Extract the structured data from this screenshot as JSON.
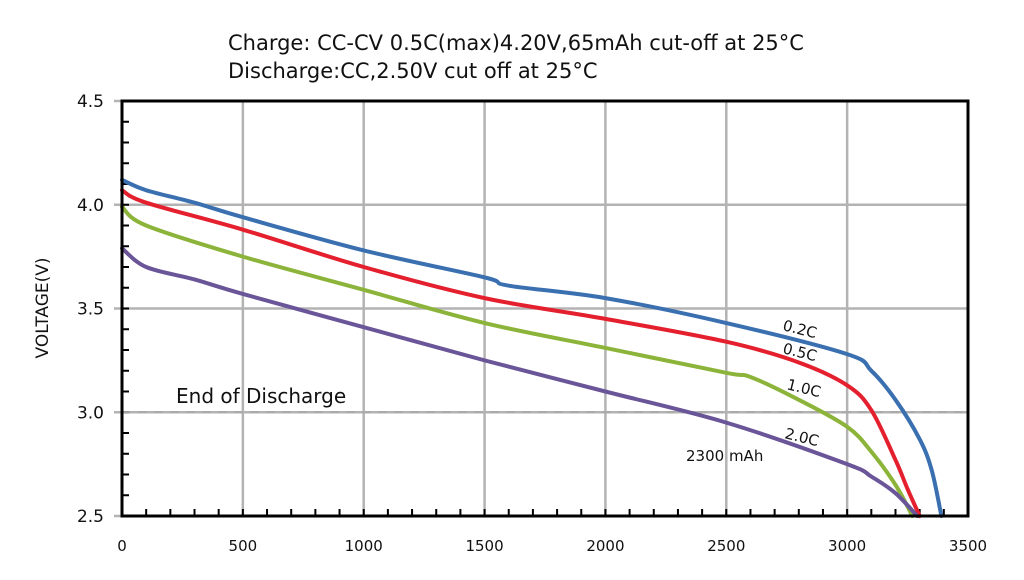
{
  "chart_data": {
    "type": "line",
    "title": [
      "Charge: CC-CV 0.5C(max)4.20V,65mAh cut-off at 25°C",
      "Discharge:CC,2.50V cut off at 25°C"
    ],
    "xlabel": "",
    "ylabel": "VOLTAGE(V)",
    "xlim": [
      0,
      3500
    ],
    "ylim": [
      2.5,
      4.5
    ],
    "xticks": [
      "0",
      "500",
      "1000",
      "1500",
      "2000",
      "2500",
      "3000",
      "3500"
    ],
    "yticks": [
      "2.5",
      "3.0",
      "3.5",
      "4.0",
      "4.5"
    ],
    "grid": true,
    "reference_line": {
      "y": 3.0,
      "label": "End of Discharge",
      "style": "dashed",
      "color": "#aaaaaa"
    },
    "annotation": "2300 mAh",
    "series": [
      {
        "name": "0.2C",
        "color": "#3a6fb0",
        "x": [
          0,
          100,
          300,
          500,
          1000,
          1500,
          1600,
          2000,
          2500,
          3000,
          3100,
          3200,
          3300,
          3350,
          3390
        ],
        "y": [
          4.12,
          4.07,
          4.01,
          3.94,
          3.78,
          3.65,
          3.61,
          3.55,
          3.43,
          3.28,
          3.2,
          3.06,
          2.87,
          2.72,
          2.5
        ]
      },
      {
        "name": "0.5C",
        "color": "#e5202e",
        "x": [
          0,
          100,
          500,
          1000,
          1500,
          2000,
          2500,
          2800,
          3000,
          3100,
          3200,
          3250,
          3300
        ],
        "y": [
          4.07,
          4.01,
          3.88,
          3.7,
          3.55,
          3.45,
          3.34,
          3.24,
          3.13,
          3.01,
          2.77,
          2.63,
          2.5
        ]
      },
      {
        "name": "1.0C",
        "color": "#8db43a",
        "x": [
          0,
          100,
          500,
          1000,
          1500,
          2000,
          2500,
          2600,
          2800,
          3000,
          3100,
          3200,
          3270
        ],
        "y": [
          3.99,
          3.9,
          3.75,
          3.59,
          3.43,
          3.31,
          3.19,
          3.17,
          3.06,
          2.93,
          2.81,
          2.65,
          2.5
        ]
      },
      {
        "name": "2.0C",
        "color": "#6a5598",
        "x": [
          0,
          100,
          300,
          500,
          1000,
          1500,
          2000,
          2500,
          3000,
          3100,
          3200,
          3290
        ],
        "y": [
          3.79,
          3.7,
          3.64,
          3.57,
          3.41,
          3.25,
          3.1,
          2.95,
          2.75,
          2.69,
          2.61,
          2.5
        ]
      }
    ]
  }
}
